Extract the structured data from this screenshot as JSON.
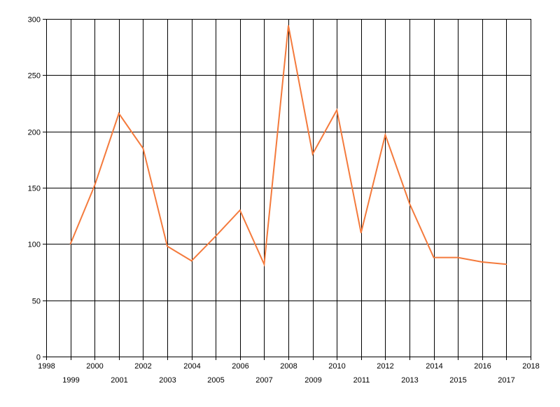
{
  "chart_data": {
    "type": "line",
    "title": "",
    "xlabel": "",
    "ylabel": "",
    "xlim": [
      1998,
      2018
    ],
    "ylim": [
      0,
      300
    ],
    "x_ticks": [
      1998,
      1999,
      2000,
      2001,
      2002,
      2003,
      2004,
      2005,
      2006,
      2007,
      2008,
      2009,
      2010,
      2011,
      2012,
      2013,
      2014,
      2015,
      2016,
      2017,
      2018
    ],
    "y_ticks": [
      0,
      50,
      100,
      150,
      200,
      250,
      300
    ],
    "grid": true,
    "legend": "none",
    "series": [
      {
        "color": "#f47a3c",
        "x": [
          1999,
          2000,
          2001,
          2002,
          2003,
          2004,
          2005,
          2006,
          2007,
          2008,
          2009,
          2010,
          2011,
          2012,
          2013,
          2014,
          2015,
          2016,
          2017
        ],
        "y": [
          100,
          152,
          216,
          185,
          98,
          85,
          107,
          130,
          82,
          294,
          180,
          219,
          110,
          197,
          136,
          88,
          88,
          84,
          82
        ]
      }
    ]
  }
}
